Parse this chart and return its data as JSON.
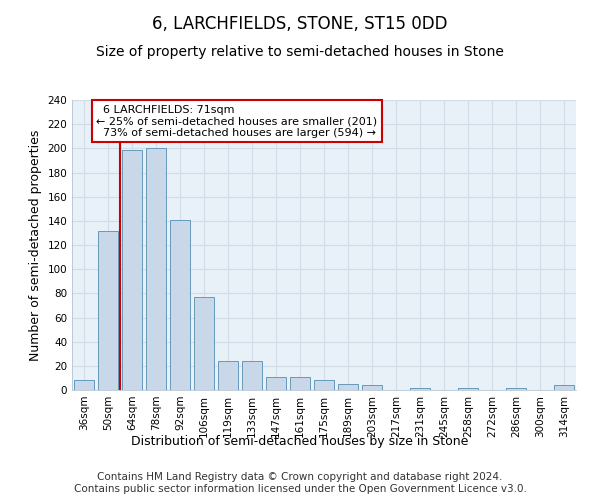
{
  "title": "6, LARCHFIELDS, STONE, ST15 0DD",
  "subtitle": "Size of property relative to semi-detached houses in Stone",
  "xlabel": "Distribution of semi-detached houses by size in Stone",
  "ylabel": "Number of semi-detached properties",
  "categories": [
    "36sqm",
    "50sqm",
    "64sqm",
    "78sqm",
    "92sqm",
    "106sqm",
    "119sqm",
    "133sqm",
    "147sqm",
    "161sqm",
    "175sqm",
    "189sqm",
    "203sqm",
    "217sqm",
    "231sqm",
    "245sqm",
    "258sqm",
    "272sqm",
    "286sqm",
    "300sqm",
    "314sqm"
  ],
  "values": [
    8,
    132,
    199,
    200,
    141,
    77,
    24,
    24,
    11,
    11,
    8,
    5,
    4,
    0,
    2,
    0,
    2,
    0,
    2,
    0,
    4
  ],
  "bar_color": "#c8d8e8",
  "bar_edge_color": "#6699bb",
  "grid_color": "#d0dde8",
  "background_color": "#e8f0f8",
  "annotation_box_color": "#ffffff",
  "annotation_border_color": "#cc0000",
  "red_line_x": 2.0,
  "property_size": "71sqm",
  "pct_smaller": 25,
  "n_smaller": 201,
  "pct_larger": 73,
  "n_larger": 594,
  "ylim": [
    0,
    240
  ],
  "yticks": [
    0,
    20,
    40,
    60,
    80,
    100,
    120,
    140,
    160,
    180,
    200,
    220,
    240
  ],
  "footer_line1": "Contains HM Land Registry data © Crown copyright and database right 2024.",
  "footer_line2": "Contains public sector information licensed under the Open Government Licence v3.0.",
  "title_fontsize": 12,
  "subtitle_fontsize": 10,
  "xlabel_fontsize": 9,
  "ylabel_fontsize": 9,
  "tick_fontsize": 7.5,
  "footer_fontsize": 7.5
}
